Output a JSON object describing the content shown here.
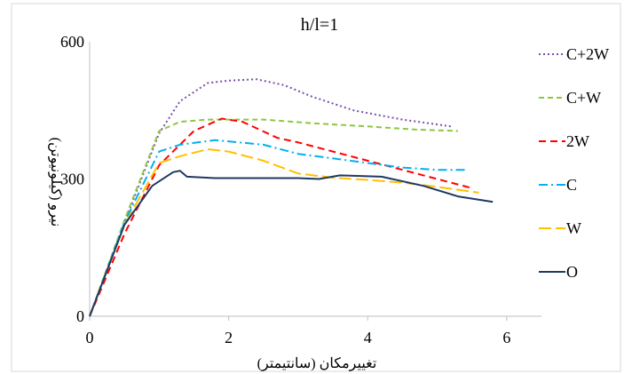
{
  "chart_data": {
    "type": "line",
    "title": "h/l=1",
    "xlabel": "تغییرمکان (سانتیمتر)",
    "ylabel": "نیرو (کیلونیوتن)",
    "xlim": [
      0,
      6.5
    ],
    "ylim": [
      0,
      600
    ],
    "x_ticks": [
      "0",
      "2",
      "4",
      "6"
    ],
    "x_tick_values": [
      0,
      2,
      4,
      6
    ],
    "y_ticks": [
      "0",
      "300",
      "600"
    ],
    "y_tick_values": [
      0,
      300,
      600
    ],
    "grid": false,
    "legend_position": "right",
    "series": [
      {
        "name": "C+2W",
        "color": "#7a4fa8",
        "dash": "2,3",
        "x": [
          0,
          0.5,
          1.0,
          1.3,
          1.7,
          2.0,
          2.4,
          2.8,
          3.2,
          3.8,
          4.5,
          5.2
        ],
        "y": [
          0,
          205,
          400,
          470,
          510,
          515,
          518,
          505,
          480,
          450,
          430,
          415
        ]
      },
      {
        "name": "C+W",
        "color": "#8dc63f",
        "dash": "6,4",
        "x": [
          0,
          0.5,
          1.0,
          1.3,
          1.7,
          2.5,
          3.2,
          4.0,
          4.7,
          5.3
        ],
        "y": [
          0,
          210,
          405,
          425,
          430,
          430,
          422,
          415,
          408,
          405
        ]
      },
      {
        "name": "2W",
        "color": "#ff0000",
        "dash": "8,5",
        "x": [
          0,
          0.5,
          1.0,
          1.5,
          1.9,
          2.2,
          2.7,
          3.0,
          3.5,
          4.0,
          4.5,
          5.0,
          5.5
        ],
        "y": [
          0,
          180,
          330,
          405,
          432,
          425,
          390,
          380,
          360,
          340,
          320,
          300,
          280
        ]
      },
      {
        "name": "C",
        "color": "#00b0f0",
        "dash": "10,4,2,4",
        "x": [
          0,
          0.5,
          1.0,
          1.3,
          1.8,
          2.5,
          3.0,
          3.5,
          4.0,
          4.5,
          5.0,
          5.4
        ],
        "y": [
          0,
          205,
          360,
          375,
          385,
          375,
          355,
          345,
          335,
          325,
          320,
          320
        ]
      },
      {
        "name": "W",
        "color": "#ffc000",
        "dash": "14,5",
        "x": [
          0,
          0.5,
          1.0,
          1.3,
          1.7,
          2.0,
          2.5,
          3.0,
          3.5,
          4.0,
          4.5,
          5.0,
          5.6
        ],
        "y": [
          0,
          200,
          335,
          350,
          365,
          360,
          340,
          312,
          303,
          298,
          292,
          283,
          270
        ]
      },
      {
        "name": "O",
        "color": "#1f3864",
        "dash": "",
        "x": [
          0,
          0.5,
          0.9,
          1.2,
          1.3,
          1.4,
          1.8,
          2.4,
          3.0,
          3.3,
          3.6,
          4.2,
          4.8,
          5.3,
          5.8
        ],
        "y": [
          0,
          200,
          285,
          315,
          318,
          305,
          302,
          302,
          302,
          300,
          308,
          305,
          285,
          262,
          250
        ]
      }
    ]
  }
}
